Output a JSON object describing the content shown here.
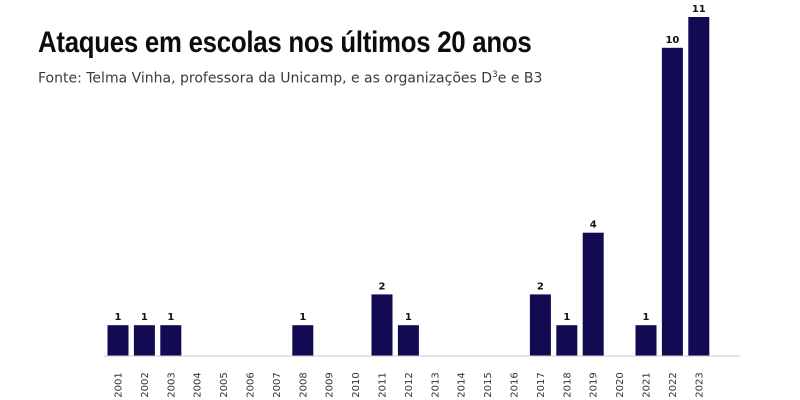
{
  "header": {
    "title": "Ataques em escolas nos últimos 20 anos",
    "subtitle_main": "Fonte: Telma Vinha, professora da Unicamp, e as organizações D",
    "subtitle_sup": "3",
    "subtitle_end": "e e B3"
  },
  "colors": {
    "bar": "#120a52",
    "axis": "#c8c8c8"
  },
  "chart_data": {
    "type": "bar",
    "title": "Ataques em escolas nos últimos 20 anos",
    "categories": [
      "2001",
      "2002",
      "2003",
      "2004",
      "2005",
      "2006",
      "2007",
      "2008",
      "2009",
      "2010",
      "2011",
      "2012",
      "2013",
      "2014",
      "2015",
      "2016",
      "2017",
      "2018",
      "2019",
      "2020",
      "2021",
      "2022",
      "2023"
    ],
    "values": [
      1,
      1,
      1,
      0,
      0,
      0,
      0,
      1,
      0,
      0,
      2,
      1,
      0,
      0,
      0,
      0,
      2,
      1,
      4,
      0,
      1,
      10,
      11
    ],
    "ylim": [
      0,
      11
    ],
    "grid": false,
    "data_labels": true
  }
}
